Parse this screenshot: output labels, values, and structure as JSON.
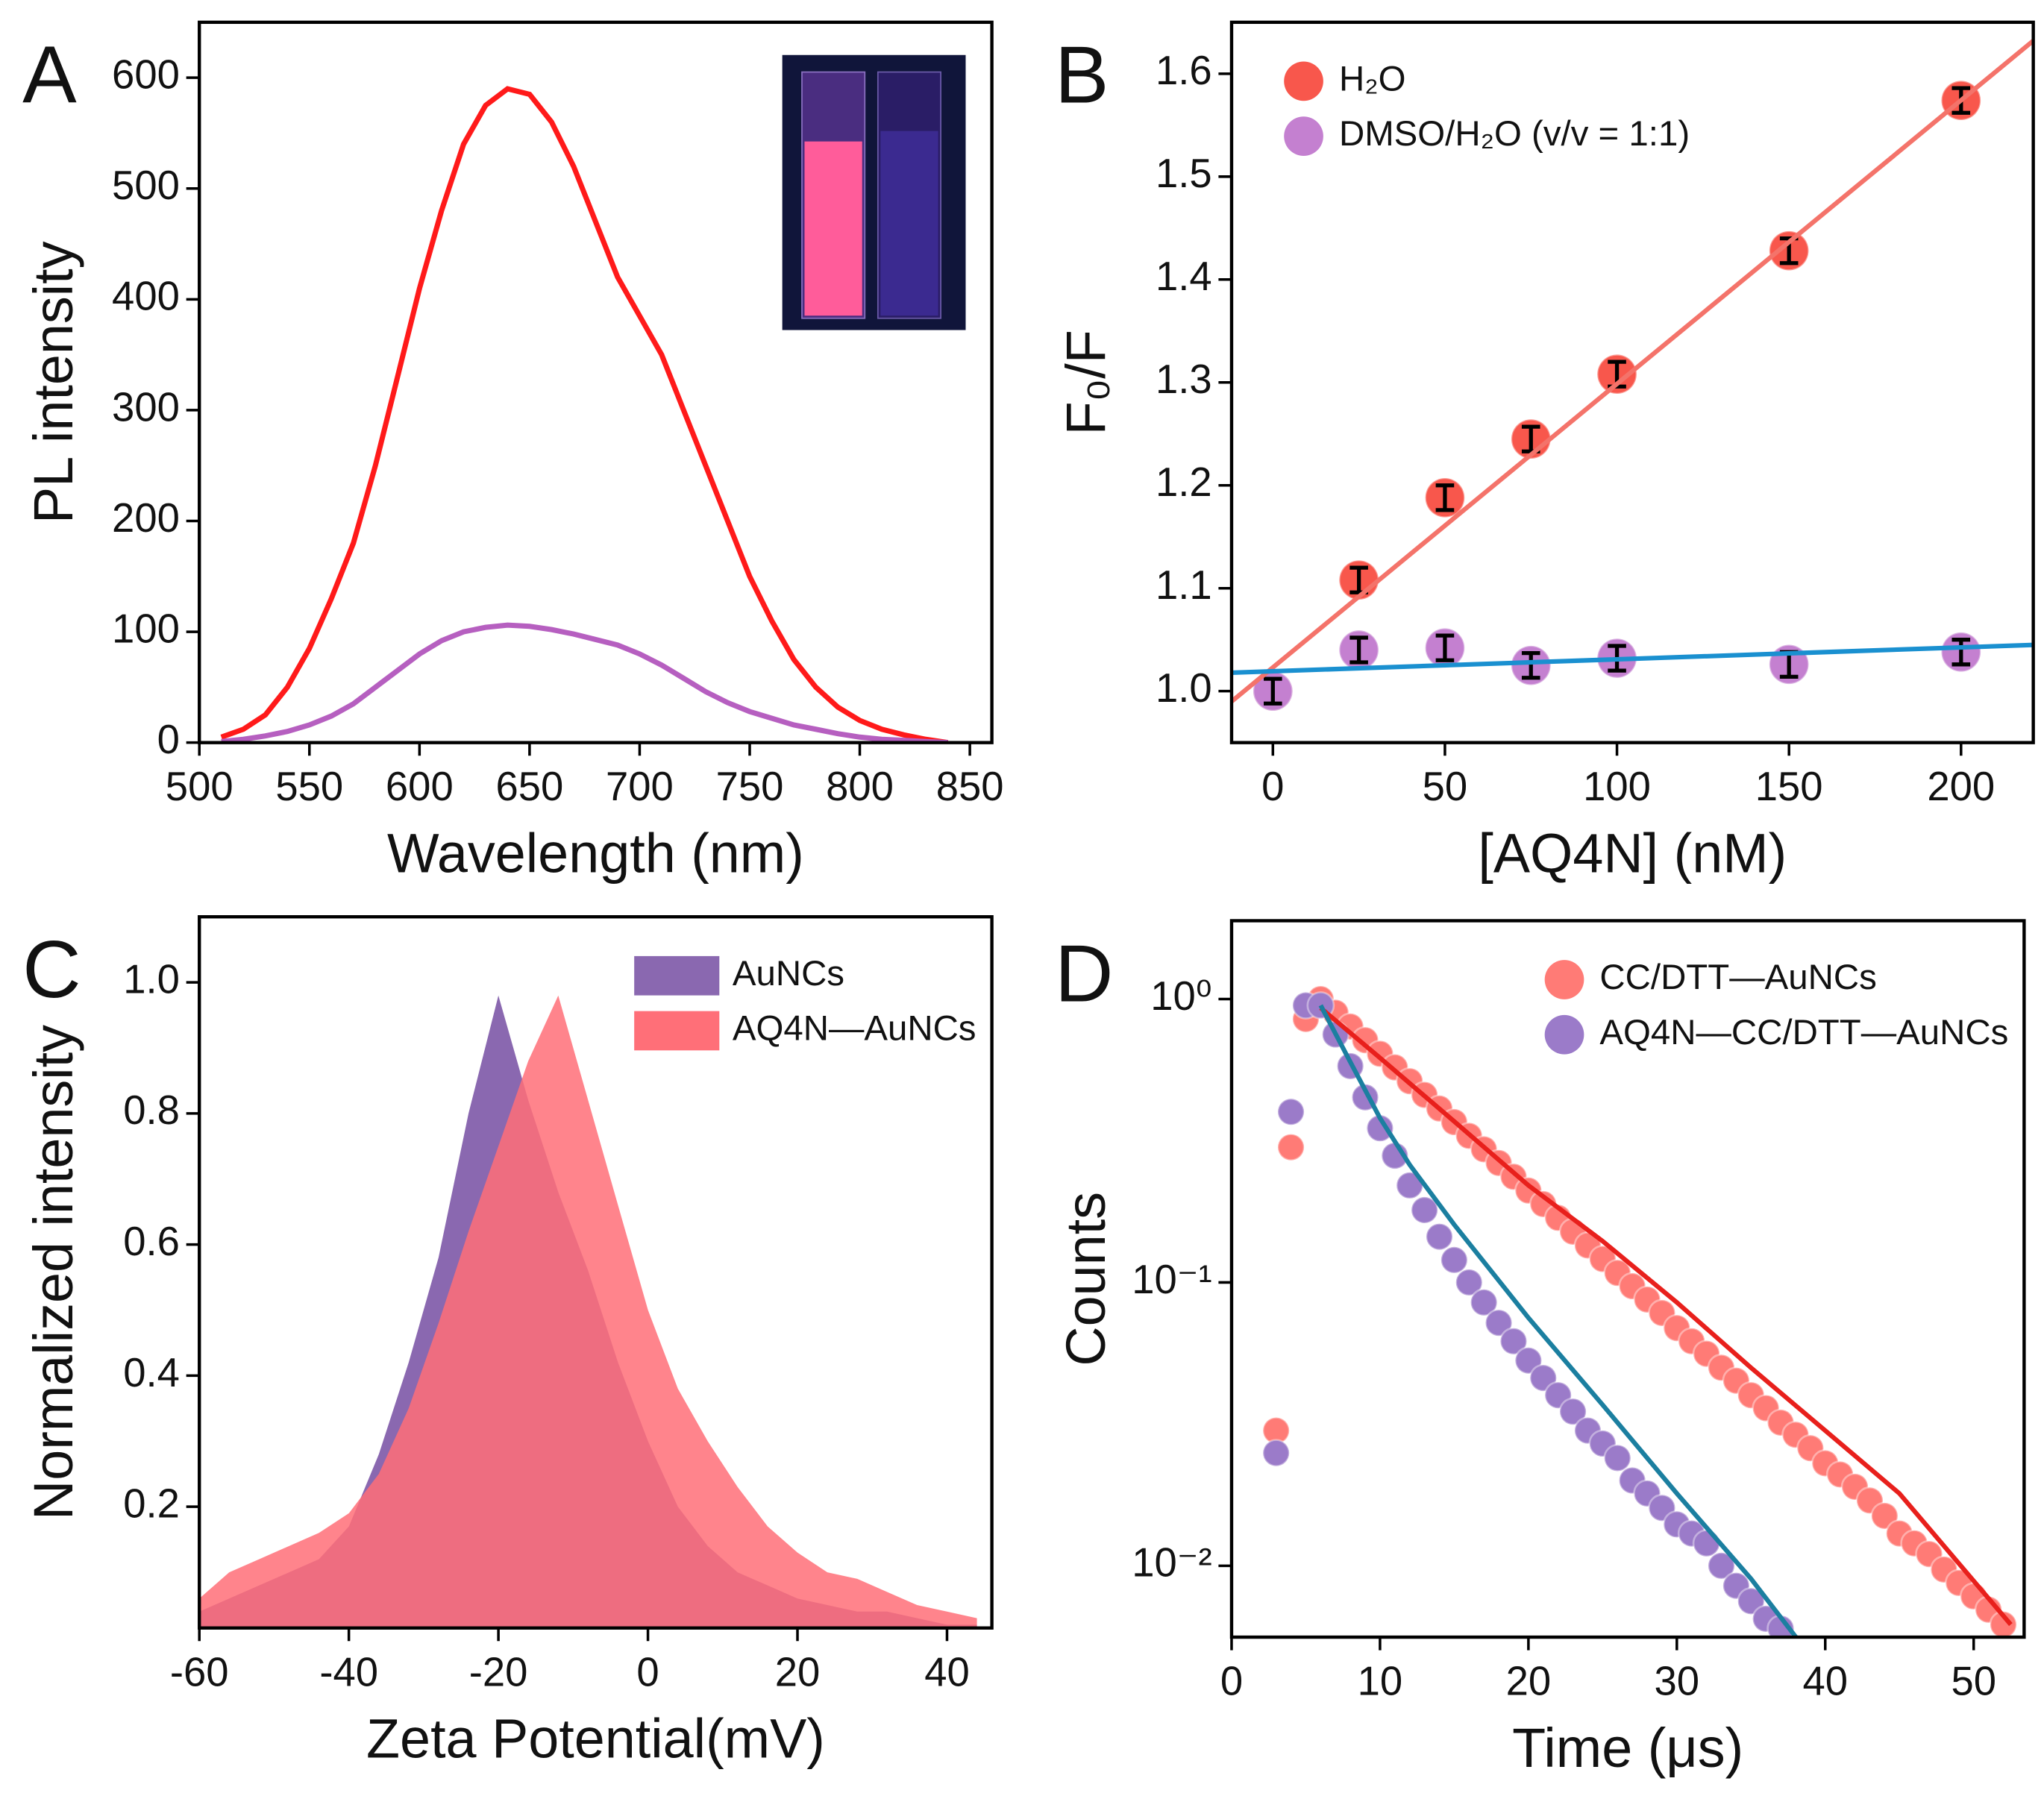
{
  "chart_data": [
    {
      "type": "line",
      "panel_label": "A",
      "x_label": "Wavelength (nm)",
      "y_label": "PL intensity",
      "x": [
        510,
        520,
        530,
        540,
        550,
        560,
        570,
        580,
        590,
        600,
        610,
        620,
        630,
        640,
        650,
        660,
        670,
        680,
        690,
        700,
        710,
        720,
        730,
        740,
        750,
        760,
        770,
        780,
        790,
        800,
        810,
        820,
        830,
        840
      ],
      "series": [
        {
          "color": "#ff1a1a",
          "values": [
            5,
            12,
            25,
            50,
            85,
            130,
            180,
            250,
            330,
            410,
            480,
            540,
            575,
            590,
            585,
            560,
            520,
            470,
            420,
            385,
            350,
            300,
            250,
            200,
            150,
            110,
            75,
            50,
            32,
            20,
            12,
            7,
            3,
            0
          ]
        },
        {
          "color": "#b65fc0",
          "values": [
            1,
            3,
            6,
            10,
            16,
            24,
            35,
            50,
            65,
            80,
            92,
            100,
            104,
            106,
            105,
            102,
            98,
            93,
            88,
            80,
            70,
            58,
            46,
            36,
            28,
            22,
            16,
            12,
            8,
            5,
            3,
            2,
            1,
            0
          ]
        }
      ],
      "xlim": [
        500,
        860
      ],
      "xticks": [
        500,
        550,
        600,
        650,
        700,
        750,
        800,
        850
      ],
      "ylim": [
        0,
        650
      ],
      "yticks": [
        0,
        100,
        200,
        300,
        400,
        500,
        600
      ]
    },
    {
      "type": "scatter",
      "panel_label": "B",
      "x_label": "[AQ4N] (nM)",
      "y_label": "F₀/F",
      "x": [
        0,
        25,
        50,
        75,
        100,
        150,
        200
      ],
      "series": [
        {
          "name": "H₂O",
          "color": "#f8574c",
          "values": [
            1.0,
            1.108,
            1.188,
            1.245,
            1.308,
            1.428,
            1.574
          ],
          "errors": [
            0.012,
            0.012,
            0.012,
            0.012,
            0.012,
            0.012,
            0.012
          ]
        },
        {
          "name": "DMSO/H₂O (v/v = 1:1)",
          "color": "#c480d0",
          "values": [
            1.0,
            1.04,
            1.042,
            1.025,
            1.032,
            1.026,
            1.038
          ],
          "errors": [
            0.012,
            0.012,
            0.012,
            0.012,
            0.012,
            0.012,
            0.012
          ]
        }
      ],
      "fits": [
        {
          "color": "#f4736a",
          "x": [
            -12,
            221
          ],
          "values": [
            0.99,
            1.632
          ]
        },
        {
          "color": "#1a90d0",
          "x": [
            -12,
            221
          ],
          "values": [
            1.018,
            1.045
          ]
        }
      ],
      "legend": "top-left",
      "xlim": [
        -12,
        221
      ],
      "xticks": [
        0,
        50,
        100,
        150,
        200
      ],
      "ylim": [
        0.95,
        1.65
      ],
      "yticks": [
        {
          "value": 1,
          "label": "1.0"
        },
        1.1,
        1.2,
        1.3,
        1.4,
        1.5,
        1.6
      ]
    },
    {
      "type": "area",
      "panel_label": "C",
      "x_label": "Zeta Potential(mV)",
      "y_label": "Normalized intensity",
      "x": [
        -60,
        -56,
        -52,
        -48,
        -44,
        -40,
        -36,
        -32,
        -28,
        -24,
        -20,
        -16,
        -12,
        -8,
        -4,
        0,
        4,
        8,
        12,
        16,
        20,
        24,
        28,
        32,
        36,
        40,
        44
      ],
      "series": [
        {
          "name": "AuNCs",
          "color": "#8a68b0",
          "values": [
            0.04,
            0.06,
            0.08,
            0.1,
            0.12,
            0.17,
            0.28,
            0.42,
            0.58,
            0.8,
            0.98,
            0.82,
            0.68,
            0.56,
            0.42,
            0.3,
            0.2,
            0.14,
            0.1,
            0.08,
            0.06,
            0.05,
            0.04,
            0.04,
            0.03,
            0.02,
            0.02
          ]
        },
        {
          "name": "AQ4N—AuNCs",
          "color": "#ff6f78",
          "values": [
            0.06,
            0.1,
            0.12,
            0.14,
            0.16,
            0.19,
            0.25,
            0.35,
            0.48,
            0.62,
            0.75,
            0.88,
            0.98,
            0.82,
            0.66,
            0.5,
            0.38,
            0.3,
            0.23,
            0.17,
            0.13,
            0.1,
            0.09,
            0.07,
            0.05,
            0.04,
            0.03
          ]
        }
      ],
      "legend": "top-right",
      "xlim": [
        -60,
        46
      ],
      "xticks": [
        -60,
        -40,
        -20,
        0,
        20,
        40
      ],
      "ylim": [
        0.015,
        1.1
      ],
      "yticks": [
        0.2,
        0.4,
        0.6,
        0.8,
        {
          "value": 1,
          "label": "1.0"
        }
      ]
    },
    {
      "type": "scatter",
      "log_y": true,
      "panel_label": "D",
      "x_label": "Time (μs)",
      "y_label": "Counts",
      "series": [
        {
          "name": "CC/DTT—AuNCs",
          "color": "#ff7b76",
          "x": [
            3,
            4,
            5,
            6,
            7,
            8,
            9,
            10,
            11,
            12,
            13,
            14,
            15,
            16,
            17,
            18,
            19,
            20,
            21,
            22,
            23,
            24,
            25,
            26,
            27,
            28,
            29,
            30,
            31,
            32,
            33,
            34,
            35,
            36,
            37,
            38,
            39,
            40,
            41,
            42,
            43,
            44,
            45,
            46,
            47,
            48,
            49,
            50,
            51,
            52
          ],
          "values": [
            0.03,
            0.3,
            0.85,
            1.0,
            0.895,
            0.8,
            0.716,
            0.641,
            0.574,
            0.513,
            0.459,
            0.411,
            0.368,
            0.329,
            0.295,
            0.264,
            0.236,
            0.211,
            0.189,
            0.169,
            0.151,
            0.135,
            0.121,
            0.108,
            0.097,
            0.087,
            0.078,
            0.069,
            0.062,
            0.056,
            0.05,
            0.045,
            0.04,
            0.036,
            0.032,
            0.029,
            0.026,
            0.023,
            0.021,
            0.019,
            0.017,
            0.015,
            0.013,
            0.012,
            0.011,
            0.0097,
            0.0087,
            0.0078,
            0.007,
            0.0062
          ]
        },
        {
          "name": "AQ4N—CC/DTT—AuNCs",
          "color": "#9b7bc9",
          "x": [
            3,
            4,
            5,
            6,
            7,
            8,
            9,
            10,
            11,
            12,
            13,
            14,
            15,
            16,
            17,
            18,
            19,
            20,
            21,
            22,
            23,
            24,
            25,
            26,
            27,
            28,
            29,
            30,
            31,
            32,
            33,
            34,
            35,
            36,
            37
          ],
          "values": [
            0.025,
            0.4,
            0.95,
            0.95,
            0.75,
            0.58,
            0.45,
            0.35,
            0.28,
            0.22,
            0.18,
            0.145,
            0.12,
            0.1,
            0.085,
            0.072,
            0.062,
            0.053,
            0.046,
            0.04,
            0.035,
            0.03,
            0.027,
            0.024,
            0.02,
            0.018,
            0.016,
            0.014,
            0.013,
            0.012,
            0.01,
            0.0085,
            0.0075,
            0.0065,
            0.006
          ]
        }
      ],
      "fits": [
        {
          "color": "#e8201c",
          "x": [
            6,
            10,
            15,
            20,
            25,
            30,
            35,
            40,
            45,
            52.5
          ],
          "values": [
            0.93,
            0.62,
            0.37,
            0.22,
            0.14,
            0.085,
            0.05,
            0.03,
            0.018,
            0.0062
          ]
        },
        {
          "color": "#1b7fa0",
          "x": [
            6,
            8,
            10,
            12,
            15,
            20,
            25,
            30,
            35,
            38.5
          ],
          "values": [
            0.95,
            0.6,
            0.38,
            0.26,
            0.16,
            0.075,
            0.037,
            0.018,
            0.009,
            0.0052
          ]
        }
      ],
      "legend": "top-right",
      "xlim": [
        0,
        53.4
      ],
      "xticks": [
        0,
        10,
        20,
        30,
        40,
        50
      ],
      "ylim": [
        0.0056,
        1.89
      ],
      "yticks": [
        {
          "value": 1,
          "label": "10⁰"
        },
        {
          "value": 0.1,
          "label": "10⁻¹"
        },
        {
          "value": 0.01,
          "label": "10⁻²"
        }
      ]
    }
  ]
}
